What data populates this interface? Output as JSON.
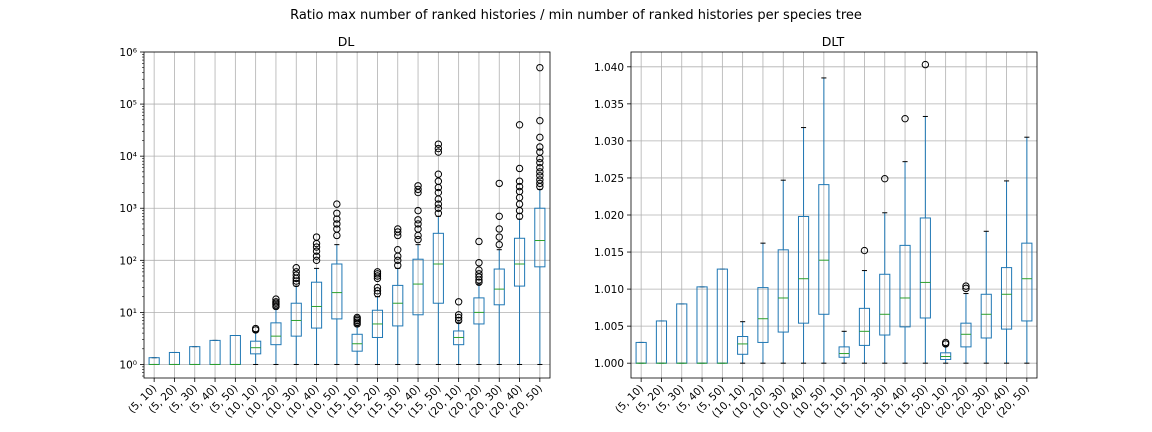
{
  "chart_data": {
    "type": "box",
    "suptitle": "Ratio max number of ranked histories / min number of ranked histories per species tree",
    "categories": [
      "(5, 10)",
      "(5, 20)",
      "(5, 30)",
      "(5, 40)",
      "(5, 50)",
      "(10, 10)",
      "(10, 20)",
      "(10, 30)",
      "(10, 40)",
      "(10, 50)",
      "(15, 10)",
      "(15, 20)",
      "(15, 30)",
      "(15, 40)",
      "(15, 50)",
      "(20, 10)",
      "(20, 20)",
      "(20, 30)",
      "(20, 40)",
      "(20, 50)"
    ],
    "colors": {
      "box": "#1f77b4",
      "median": "#2ca02c",
      "whisker": "#1f77b4",
      "grid": "#b0b0b0",
      "flier": "#000000"
    },
    "panels": [
      {
        "title": "DL",
        "yscale": "log",
        "ylim": [
          0.55,
          1000000
        ],
        "yticks": [
          1,
          10,
          100,
          1000,
          10000,
          100000,
          1000000
        ],
        "ytick_labels": [
          "10⁰",
          "10¹",
          "10²",
          "10³",
          "10⁴",
          "10⁵",
          "10⁶"
        ],
        "grid": true,
        "boxes": [
          {
            "whislo": 1,
            "q1": 1,
            "med": 1,
            "q3": 1.35,
            "whishi": 1.35,
            "fliers": []
          },
          {
            "whislo": 1,
            "q1": 1,
            "med": 1,
            "q3": 1.7,
            "whishi": 1.7,
            "fliers": []
          },
          {
            "whislo": 1,
            "q1": 1,
            "med": 1,
            "q3": 2.2,
            "whishi": 2.2,
            "fliers": []
          },
          {
            "whislo": 1,
            "q1": 1,
            "med": 1,
            "q3": 2.9,
            "whishi": 2.9,
            "fliers": []
          },
          {
            "whislo": 1,
            "q1": 1,
            "med": 1,
            "q3": 3.6,
            "whishi": 3.6,
            "fliers": []
          },
          {
            "whislo": 1,
            "q1": 1.6,
            "med": 2.1,
            "q3": 2.8,
            "whishi": 4.2,
            "fliers": [
              4.6,
              4.9
            ]
          },
          {
            "whislo": 1,
            "q1": 2.4,
            "med": 3.5,
            "q3": 6.3,
            "whishi": 12,
            "fliers": [
              13,
              14,
              15,
              16,
              18
            ]
          },
          {
            "whislo": 1,
            "q1": 3.5,
            "med": 7,
            "q3": 15,
            "whishi": 32,
            "fliers": [
              36,
              40,
              45,
              52,
              60,
              72
            ]
          },
          {
            "whislo": 1,
            "q1": 5,
            "med": 13,
            "q3": 38,
            "whishi": 70,
            "fliers": [
              100,
              120,
              150,
              180,
              210,
              280
            ]
          },
          {
            "whislo": 1,
            "q1": 7.5,
            "med": 24,
            "q3": 85,
            "whishi": 200,
            "fliers": [
              300,
              400,
              500,
              620,
              800,
              1200
            ]
          },
          {
            "whislo": 1,
            "q1": 1.8,
            "med": 2.5,
            "q3": 3.8,
            "whishi": 5.5,
            "fliers": [
              6,
              6.5,
              7,
              7.5,
              8
            ]
          },
          {
            "whislo": 1,
            "q1": 3.3,
            "med": 6,
            "q3": 11,
            "whishi": 20,
            "fliers": [
              23,
              26,
              30,
              45,
              50,
              55,
              60
            ]
          },
          {
            "whislo": 1,
            "q1": 5.5,
            "med": 15,
            "q3": 33,
            "whishi": 70,
            "fliers": [
              80,
              100,
              120,
              160,
              300,
              350,
              400
            ]
          },
          {
            "whislo": 1,
            "q1": 9,
            "med": 35,
            "q3": 105,
            "whishi": 200,
            "fliers": [
              250,
              300,
              400,
              500,
              600,
              900,
              2000,
              2300,
              2700
            ]
          },
          {
            "whislo": 1,
            "q1": 15,
            "med": 85,
            "q3": 330,
            "whishi": 700,
            "fliers": [
              800,
              1000,
              1200,
              1500,
              2000,
              2500,
              3300,
              4500,
              12000,
              14000,
              17000
            ]
          },
          {
            "whislo": 1,
            "q1": 2.4,
            "med": 3.3,
            "q3": 4.4,
            "whishi": 6.5,
            "fliers": [
              7,
              8,
              9,
              16
            ]
          },
          {
            "whislo": 1,
            "q1": 6,
            "med": 10,
            "q3": 19,
            "whishi": 35,
            "fliers": [
              38,
              42,
              48,
              55,
              65,
              90,
              230
            ]
          },
          {
            "whislo": 1,
            "q1": 14,
            "med": 28,
            "q3": 68,
            "whishi": 160,
            "fliers": [
              200,
              280,
              400,
              700,
              3000
            ]
          },
          {
            "whislo": 1,
            "q1": 32,
            "med": 85,
            "q3": 265,
            "whishi": 620,
            "fliers": [
              700,
              900,
              1200,
              1600,
              2100,
              2600,
              3300,
              5800,
              40000
            ]
          },
          {
            "whislo": 1,
            "q1": 75,
            "med": 240,
            "q3": 1000,
            "whishi": 2300,
            "fliers": [
              2600,
              3000,
              3500,
              4200,
              5000,
              6000,
              7500,
              9000,
              12000,
              15000,
              23000,
              48000,
              500000
            ]
          }
        ]
      },
      {
        "title": "DLT",
        "yscale": "linear",
        "ylim": [
          0.998,
          1.042
        ],
        "yticks": [
          1.0,
          1.005,
          1.01,
          1.015,
          1.02,
          1.025,
          1.03,
          1.035,
          1.04
        ],
        "ytick_labels": [
          "1.000",
          "1.005",
          "1.010",
          "1.015",
          "1.020",
          "1.025",
          "1.030",
          "1.035",
          "1.040"
        ],
        "grid": true,
        "boxes": [
          {
            "whislo": 1.0,
            "q1": 1.0,
            "med": 1.0,
            "q3": 1.0028,
            "whishi": 1.0028,
            "fliers": []
          },
          {
            "whislo": 1.0,
            "q1": 1.0,
            "med": 1.0,
            "q3": 1.0057,
            "whishi": 1.0057,
            "fliers": []
          },
          {
            "whislo": 1.0,
            "q1": 1.0,
            "med": 1.0,
            "q3": 1.008,
            "whishi": 1.008,
            "fliers": []
          },
          {
            "whislo": 1.0,
            "q1": 1.0,
            "med": 1.0,
            "q3": 1.0103,
            "whishi": 1.0103,
            "fliers": []
          },
          {
            "whislo": 1.0,
            "q1": 1.0,
            "med": 1.0,
            "q3": 1.0127,
            "whishi": 1.0127,
            "fliers": []
          },
          {
            "whislo": 1.0,
            "q1": 1.0012,
            "med": 1.0026,
            "q3": 1.0036,
            "whishi": 1.0056,
            "fliers": []
          },
          {
            "whislo": 1.0,
            "q1": 1.0028,
            "med": 1.006,
            "q3": 1.0102,
            "whishi": 1.0162,
            "fliers": []
          },
          {
            "whislo": 1.0,
            "q1": 1.0042,
            "med": 1.0088,
            "q3": 1.0153,
            "whishi": 1.0247,
            "fliers": []
          },
          {
            "whislo": 1.0,
            "q1": 1.0054,
            "med": 1.0114,
            "q3": 1.0198,
            "whishi": 1.0318,
            "fliers": []
          },
          {
            "whislo": 1.0,
            "q1": 1.0066,
            "med": 1.0139,
            "q3": 1.0241,
            "whishi": 1.0385,
            "fliers": []
          },
          {
            "whislo": 1.0,
            "q1": 1.0008,
            "med": 1.0013,
            "q3": 1.0022,
            "whishi": 1.0043,
            "fliers": []
          },
          {
            "whislo": 1.0,
            "q1": 1.0024,
            "med": 1.0043,
            "q3": 1.0074,
            "whishi": 1.0125,
            "fliers": [
              1.0152
            ]
          },
          {
            "whislo": 1.0,
            "q1": 1.0038,
            "med": 1.0066,
            "q3": 1.012,
            "whishi": 1.0203,
            "fliers": [
              1.0249
            ]
          },
          {
            "whislo": 1.0,
            "q1": 1.0049,
            "med": 1.0088,
            "q3": 1.0159,
            "whishi": 1.0272,
            "fliers": [
              1.033
            ]
          },
          {
            "whislo": 1.0,
            "q1": 1.0061,
            "med": 1.0109,
            "q3": 1.0196,
            "whishi": 1.0333,
            "fliers": [
              1.0403
            ]
          },
          {
            "whislo": 1.0,
            "q1": 1.0005,
            "med": 1.0009,
            "q3": 1.0014,
            "whishi": 1.0023,
            "fliers": [
              1.0026,
              1.0028
            ]
          },
          {
            "whislo": 1.0,
            "q1": 1.0022,
            "med": 1.0039,
            "q3": 1.0054,
            "whishi": 1.0094,
            "fliers": [
              1.0101,
              1.0104
            ]
          },
          {
            "whislo": 1.0,
            "q1": 1.0034,
            "med": 1.0066,
            "q3": 1.0093,
            "whishi": 1.0178,
            "fliers": []
          },
          {
            "whislo": 1.0,
            "q1": 1.0046,
            "med": 1.0093,
            "q3": 1.0129,
            "whishi": 1.0246,
            "fliers": []
          },
          {
            "whislo": 1.0,
            "q1": 1.0057,
            "med": 1.0114,
            "q3": 1.0162,
            "whishi": 1.0305,
            "fliers": []
          }
        ]
      }
    ]
  }
}
